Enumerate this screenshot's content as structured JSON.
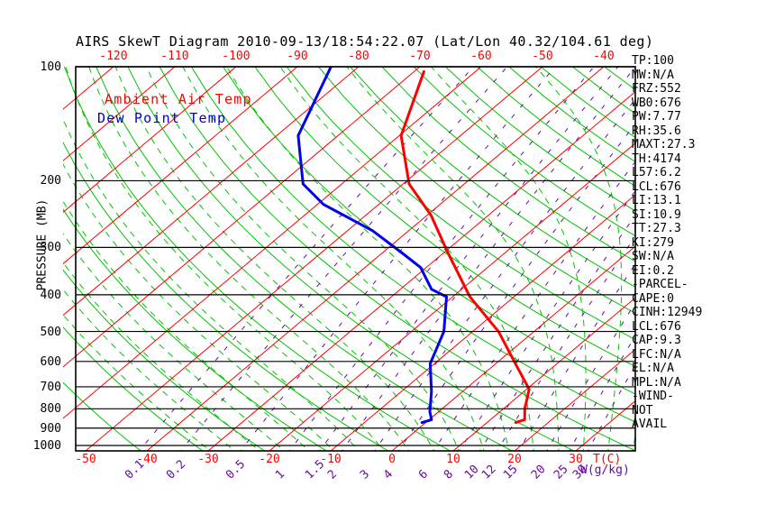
{
  "title": "AIRS SkewT Diagram 2010-09-13/18:54:22.07 (Lat/Lon 40.32/104.61 deg)",
  "legend": {
    "ambient": "Ambient Air Temp",
    "dew": "Dew Point Temp"
  },
  "axes": {
    "pressure_label": "PRESSURE (MB)",
    "pressure_ticks": [
      100,
      200,
      300,
      400,
      500,
      600,
      700,
      800,
      900,
      1000
    ],
    "top_temp_ticks": [
      -120,
      -110,
      -100,
      -90,
      -80,
      -70,
      -60,
      -50,
      -40
    ],
    "bottom_temp_ticks": [
      -50,
      -40,
      -30,
      -20,
      -10,
      0,
      10,
      20,
      30
    ],
    "temp_unit_label": "T(C)",
    "mixratio_ticks": [
      0.1,
      0.2,
      0.5,
      1,
      1.5,
      2,
      3,
      4,
      6,
      8,
      10,
      12,
      15,
      20,
      25,
      30
    ],
    "mixratio_unit_label": "W(g/kg)"
  },
  "stats": [
    "TP:100",
    "MW:N/A",
    "FRZ:552",
    "WB0:676",
    "PW:7.77",
    "RH:35.6",
    "MAXT:27.3",
    "TH:4174",
    "L57:6.2",
    "LCL:676",
    "LI:13.1",
    "SI:10.9",
    "TT:27.3",
    "KI:279",
    "SW:N/A",
    "EI:0.2",
    "-PARCEL-",
    "CAPE:0",
    "CINH:12949",
    "LCL:676",
    "CAP:9.3",
    "LFC:N/A",
    "EL:N/A",
    "MPL:N/A",
    "-WIND-",
    "NOT",
    "AVAIL"
  ],
  "colors": {
    "isotherm": "#ff0000",
    "dry_adiabat": "#00c400",
    "moist_adiabat": "#00c400",
    "mixing_ratio": "#6a0aa0",
    "pressure_line": "#000000",
    "frame": "#000000",
    "temp_curve": "#ff0000",
    "dew_curve": "#0000ee",
    "top_tick_text": "#ff0000",
    "bottom_tick_text": "#ff0000",
    "mix_tick_text": "#6a0aa0"
  },
  "chart_data": {
    "type": "line",
    "title": "AIRS SkewT Diagram 2010-09-13/18:54:22.07 (Lat/Lon 40.32/104.61 deg)",
    "x_axis": {
      "label": "T(C)",
      "bottom_ticks": [
        -50,
        -40,
        -30,
        -20,
        -10,
        0,
        10,
        20,
        30
      ],
      "top_ticks": [
        -120,
        -110,
        -100,
        -90,
        -80,
        -70,
        -60,
        -50,
        -40
      ]
    },
    "y_axis": {
      "label": "PRESSURE (MB)",
      "scale": "log",
      "range": [
        100,
        1000
      ],
      "ticks": [
        100,
        200,
        300,
        400,
        500,
        600,
        700,
        800,
        900,
        1000
      ]
    },
    "grid": {
      "isotherm_step_C": 10,
      "dry_adiabat_step_K": 10,
      "moist_adiabat_start_temps_C": [
        -28,
        -24,
        -20,
        -16,
        -12,
        -8,
        -4,
        0,
        4,
        8,
        12,
        16,
        20,
        24,
        28,
        32,
        36,
        40
      ],
      "mixing_ratio_lines_gkg": [
        0.1,
        0.2,
        0.5,
        1,
        1.5,
        2,
        3,
        4,
        6,
        8,
        10,
        12,
        15,
        20,
        25,
        30
      ]
    },
    "series": [
      {
        "name": "Ambient Air Temp",
        "color": "#ff0000",
        "points_p_T": [
          [
            103,
            -68.4
          ],
          [
            152,
            -59.7
          ],
          [
            204,
            -49.0
          ],
          [
            247,
            -39.3
          ],
          [
            308,
            -29.6
          ],
          [
            405,
            -17.2
          ],
          [
            501,
            -5.7
          ],
          [
            620,
            4.1
          ],
          [
            710,
            10.4
          ],
          [
            800,
            13.5
          ],
          [
            855,
            15.6
          ],
          [
            870,
            14.7
          ]
        ]
      },
      {
        "name": "Dew Point Temp",
        "color": "#0000ee",
        "points_p_T": [
          [
            100,
            -84.5
          ],
          [
            152,
            -76.5
          ],
          [
            204,
            -66.3
          ],
          [
            231,
            -59.0
          ],
          [
            271,
            -45.9
          ],
          [
            311,
            -36.6
          ],
          [
            339,
            -30.9
          ],
          [
            387,
            -24.9
          ],
          [
            405,
            -21.0
          ],
          [
            500,
            -14.7
          ],
          [
            608,
            -10.7
          ],
          [
            720,
            -5.1
          ],
          [
            815,
            -1.4
          ],
          [
            855,
            0.4
          ],
          [
            870,
            -0.6
          ]
        ]
      }
    ]
  }
}
